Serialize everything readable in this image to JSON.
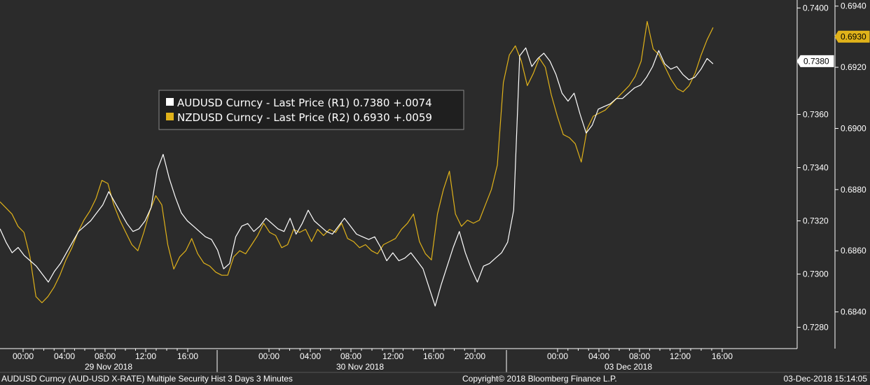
{
  "chart_data": {
    "type": "line",
    "x_time_labels": [
      "00:00",
      "04:00",
      "08:00",
      "12:00",
      "16:00",
      "00:00",
      "04:00",
      "08:00",
      "12:00",
      "16:00",
      "20:00",
      "00:00",
      "04:00",
      "08:00",
      "12:00",
      "16:00"
    ],
    "x_date_labels": [
      "29 Nov 2018",
      "30 Nov 2018",
      "03 Dec 2018"
    ],
    "y_left_note": "",
    "y1_label": "R1",
    "y1_ticks": [
      "0.7400",
      "0.7380",
      "0.7360",
      "0.7340",
      "0.7320",
      "0.7300",
      "0.7280"
    ],
    "y1_range": [
      0.7272,
      0.7403
    ],
    "y2_ticks": [
      "0.6940",
      "0.6920",
      "0.6900",
      "0.6880",
      "0.6860",
      "0.6840"
    ],
    "y2_range": [
      0.6828,
      0.6942
    ],
    "last_value_tags": {
      "audusd": "0.7380",
      "nzdusd": "0.6930"
    },
    "legend": [
      {
        "text": "AUDUSD Curncy - Last Price (R1) 0.7380  +.0074",
        "color": "#ffffff"
      },
      {
        "text": "NZDUSD Curncy - Last Price (R2) 0.6930  +.0059",
        "color": "#e0b21a"
      }
    ],
    "series": [
      {
        "name": "AUDUSD Curncy - Last Price (R1)",
        "axis": "y1",
        "color": "#ffffff",
        "values": [
          0.7317,
          0.7312,
          0.7308,
          0.731,
          0.7307,
          0.7305,
          0.7303,
          0.73,
          0.7297,
          0.7301,
          0.7304,
          0.7308,
          0.7312,
          0.7316,
          0.7318,
          0.732,
          0.7323,
          0.7326,
          0.7331,
          0.7327,
          0.7323,
          0.7319,
          0.7316,
          0.7317,
          0.732,
          0.7325,
          0.7339,
          0.7345,
          0.7336,
          0.7329,
          0.7323,
          0.732,
          0.7318,
          0.7316,
          0.7314,
          0.7313,
          0.7309,
          0.7302,
          0.7304,
          0.7314,
          0.7318,
          0.7319,
          0.7316,
          0.7318,
          0.7321,
          0.7319,
          0.7317,
          0.7316,
          0.7321,
          0.7315,
          0.7319,
          0.7324,
          0.732,
          0.7318,
          0.7316,
          0.7315,
          0.7318,
          0.7321,
          0.7318,
          0.7315,
          0.7314,
          0.7313,
          0.7314,
          0.731,
          0.7305,
          0.7308,
          0.7305,
          0.7306,
          0.7308,
          0.7305,
          0.7302,
          0.7295,
          0.7288,
          0.7296,
          0.7303,
          0.731,
          0.7316,
          0.7308,
          0.7302,
          0.7297,
          0.7303,
          0.7304,
          0.7306,
          0.7308,
          0.7312,
          0.7324,
          0.7382,
          0.7385,
          0.7378,
          0.7381,
          0.7383,
          0.738,
          0.7375,
          0.7368,
          0.7365,
          0.7368,
          0.736,
          0.7353,
          0.7356,
          0.7362,
          0.7363,
          0.7364,
          0.7366,
          0.7366,
          0.7368,
          0.737,
          0.7371,
          0.7374,
          0.7378,
          0.7384,
          0.7379,
          0.7377,
          0.7378,
          0.7375,
          0.7373,
          0.7374,
          0.7377,
          0.7381,
          0.7379
        ]
      },
      {
        "name": "NZDUSD Curncy - Last Price (R2)",
        "axis": "y2",
        "color": "#e0b21a",
        "values": [
          0.6876,
          0.6874,
          0.6872,
          0.6868,
          0.6866,
          0.6858,
          0.6845,
          0.6843,
          0.6845,
          0.6848,
          0.6852,
          0.6857,
          0.6861,
          0.6866,
          0.687,
          0.6873,
          0.6877,
          0.6883,
          0.6882,
          0.6875,
          0.687,
          0.6866,
          0.6862,
          0.686,
          0.6866,
          0.6873,
          0.6878,
          0.6875,
          0.6862,
          0.6854,
          0.6858,
          0.686,
          0.6864,
          0.6859,
          0.6856,
          0.6855,
          0.6853,
          0.6852,
          0.6852,
          0.6858,
          0.686,
          0.6859,
          0.6862,
          0.6865,
          0.6869,
          0.6866,
          0.6865,
          0.6861,
          0.6862,
          0.6867,
          0.6866,
          0.6867,
          0.6863,
          0.6867,
          0.6865,
          0.6867,
          0.6866,
          0.6869,
          0.6864,
          0.6863,
          0.6861,
          0.6862,
          0.686,
          0.6859,
          0.6862,
          0.6863,
          0.6864,
          0.6867,
          0.6869,
          0.6872,
          0.6863,
          0.6859,
          0.6857,
          0.6872,
          0.688,
          0.6886,
          0.6872,
          0.6868,
          0.687,
          0.6869,
          0.687,
          0.6875,
          0.688,
          0.6888,
          0.6915,
          0.6924,
          0.6927,
          0.6922,
          0.6914,
          0.6918,
          0.6923,
          0.692,
          0.6911,
          0.6904,
          0.6898,
          0.6897,
          0.6895,
          0.6889,
          0.69,
          0.6904,
          0.6905,
          0.6906,
          0.6908,
          0.691,
          0.6912,
          0.6914,
          0.6917,
          0.6922,
          0.6935,
          0.6926,
          0.6924,
          0.692,
          0.6916,
          0.6913,
          0.6912,
          0.6914,
          0.6918,
          0.6924,
          0.6929,
          0.6933
        ]
      }
    ]
  },
  "footer": {
    "left": "AUDUSD Curncy (AUD-USD X-RATE) Multiple Security Hist   3 Days 3 Minutes",
    "center": "Copyright© 2018 Bloomberg Finance L.P.",
    "right": "03-Dec-2018 15:14:05"
  },
  "colors": {
    "background": "#2b2b2b",
    "audusd": "#ffffff",
    "nzdusd": "#e0b21a"
  }
}
